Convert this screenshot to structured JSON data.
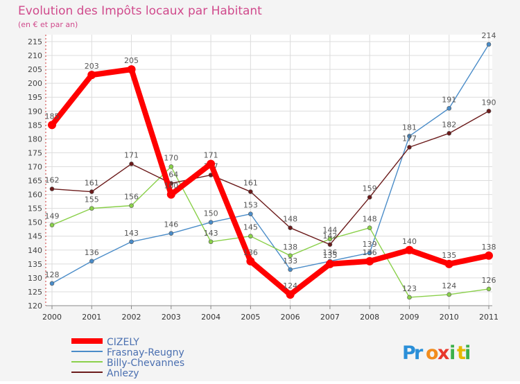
{
  "chart_data": {
    "type": "line",
    "title": "Evolution des Impôts locaux par Habitant",
    "subtitle": "(en € et par an)",
    "x": [
      "2000",
      "2001",
      "2002",
      "2003",
      "2004",
      "2005",
      "2006",
      "2007",
      "2008",
      "2009",
      "2010",
      "2011"
    ],
    "ylim": [
      120,
      215
    ],
    "yticks": [
      120,
      125,
      130,
      135,
      140,
      145,
      150,
      155,
      160,
      165,
      170,
      175,
      180,
      185,
      190,
      195,
      200,
      205,
      210,
      215
    ],
    "grid": true,
    "legend_position": "bottom-left",
    "series": [
      {
        "name": "Frasnay-Reugny",
        "color": "#4a8cc8",
        "values": [
          128,
          136,
          143,
          146,
          150,
          153,
          133,
          136,
          139,
          181,
          191,
          214
        ]
      },
      {
        "name": "Billy-Chevannes",
        "color": "#8ad04a",
        "values": [
          149,
          155,
          156,
          170,
          143,
          145,
          138,
          144,
          148,
          123,
          124,
          126
        ]
      },
      {
        "name": "Anlezy",
        "color": "#6b1a1a",
        "values": [
          162,
          161,
          171,
          164,
          167,
          161,
          148,
          142,
          159,
          177,
          182,
          190
        ]
      },
      {
        "name": "CIZELY",
        "color": "#ff0000",
        "values": [
          185,
          203,
          205,
          160,
          171,
          136,
          124,
          135,
          136,
          140,
          135,
          138
        ]
      }
    ],
    "legend_order": [
      "CIZELY",
      "Frasnay-Reugny",
      "Billy-Chevannes",
      "Anlezy"
    ]
  },
  "brand": {
    "letters": [
      "P",
      "r",
      "o",
      "x",
      "i",
      "t",
      "i"
    ],
    "colors": [
      "#2a8fd8",
      "#2a8fd8",
      "#f28c1c",
      "#e8372c",
      "#3cb04a",
      "#e6b800",
      "#3cb04a"
    ]
  }
}
